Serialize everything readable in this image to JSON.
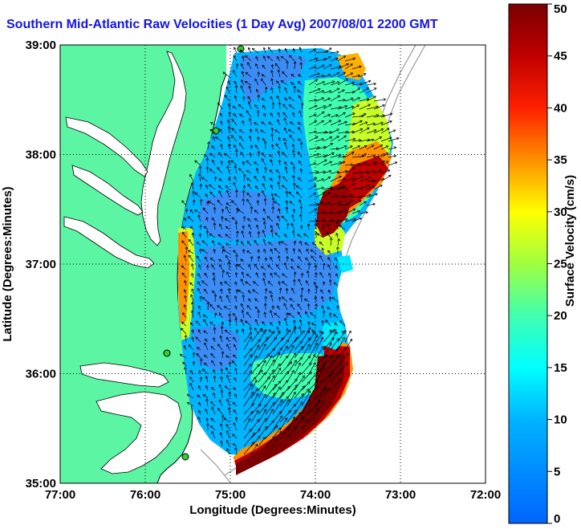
{
  "title": "Southern Mid-Atlantic Raw Velocities (1 Day Avg) 2007/08/01 2200 GMT",
  "map": {
    "xlabel": "Longitude (Degrees:Minutes)",
    "ylabel": "Latitude (Degrees:Minutes)",
    "x_ticks": [
      "77:00",
      "76:00",
      "75:00",
      "74:00",
      "73:00",
      "72:00"
    ],
    "y_ticks": [
      "39:00",
      "38:00",
      "37:00",
      "36:00",
      "35:00"
    ],
    "lon_range": [
      -77,
      -72
    ],
    "lat_range": [
      35,
      39
    ],
    "grid": true,
    "colors": {
      "land": "#5cf5a3",
      "water": "#ffffff",
      "coastline": "#000000",
      "bathymetry": "#a0a0a0",
      "station_marker": "#33cc33"
    }
  },
  "colorbar": {
    "label": "Surface Velocity (cm/s)",
    "ticks": [
      "50",
      "45",
      "40",
      "35",
      "30",
      "25",
      "20",
      "15",
      "10",
      "5",
      "0"
    ],
    "range": [
      0,
      50
    ],
    "colormap": "jet"
  }
}
